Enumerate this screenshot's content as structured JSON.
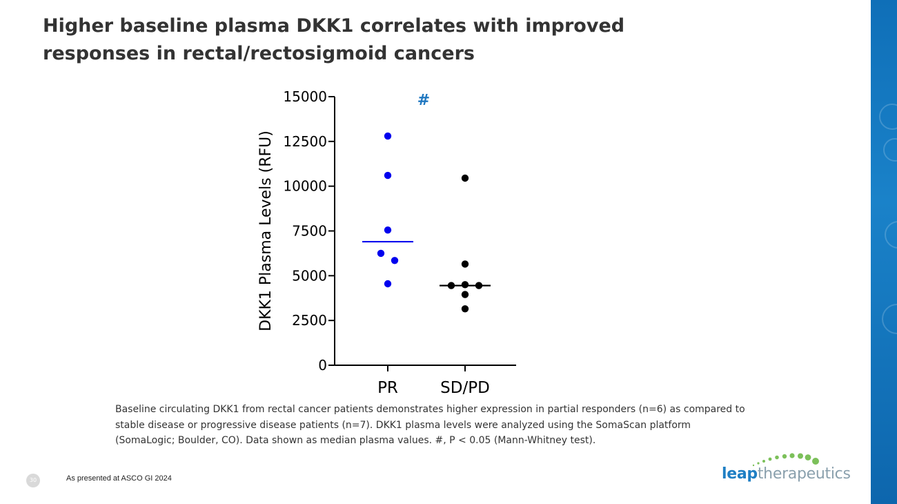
{
  "slide": {
    "title": "Higher baseline plasma DKK1 correlates with improved responses in rectal/rectosigmoid cancers",
    "caption": "Baseline circulating DKK1 from rectal cancer patients demonstrates higher expression in partial responders (n=6) as compared to stable disease or progressive disease patients (n=7).  DKK1 plasma levels were analyzed using the SomaScan platform (SomaLogic; Boulder, CO). Data shown as median plasma values. #, P < 0.05 (Mann-Whitney test).",
    "page_number": "30",
    "footer_note": "As presented at ASCO GI 2024",
    "logo": {
      "word_bold": "leap",
      "word_light": "therapeutics"
    }
  },
  "colors": {
    "pr": "#0000ee",
    "sdpd": "#000000",
    "hash": "#1f77c0",
    "band": "#1a82c9",
    "logo_green": "#7cc05a"
  },
  "chart_data": {
    "type": "scatter",
    "title": "",
    "xlabel": "",
    "ylabel": "DKK1 Plasma Levels (RFU)",
    "ylim": [
      0,
      15000
    ],
    "yticks": [
      0,
      2500,
      5000,
      7500,
      10000,
      12500,
      15000
    ],
    "categories": [
      "PR",
      "SD/PD"
    ],
    "annotation": "#",
    "series": [
      {
        "name": "PR",
        "color": "#0000ee",
        "points": [
          {
            "jitter": 0,
            "value": 12800
          },
          {
            "jitter": 0,
            "value": 10600
          },
          {
            "jitter": 0,
            "value": 7550
          },
          {
            "jitter": -1,
            "value": 6250
          },
          {
            "jitter": 1,
            "value": 5850
          },
          {
            "jitter": 0,
            "value": 4550
          }
        ],
        "median": 6900
      },
      {
        "name": "SD/PD",
        "color": "#000000",
        "points": [
          {
            "jitter": 0,
            "value": 10450
          },
          {
            "jitter": 0,
            "value": 5650
          },
          {
            "jitter": -2,
            "value": 4450
          },
          {
            "jitter": 0,
            "value": 4500
          },
          {
            "jitter": 2,
            "value": 4450
          },
          {
            "jitter": 0,
            "value": 3950
          },
          {
            "jitter": 0,
            "value": 3150
          }
        ],
        "median": 4450
      }
    ]
  }
}
